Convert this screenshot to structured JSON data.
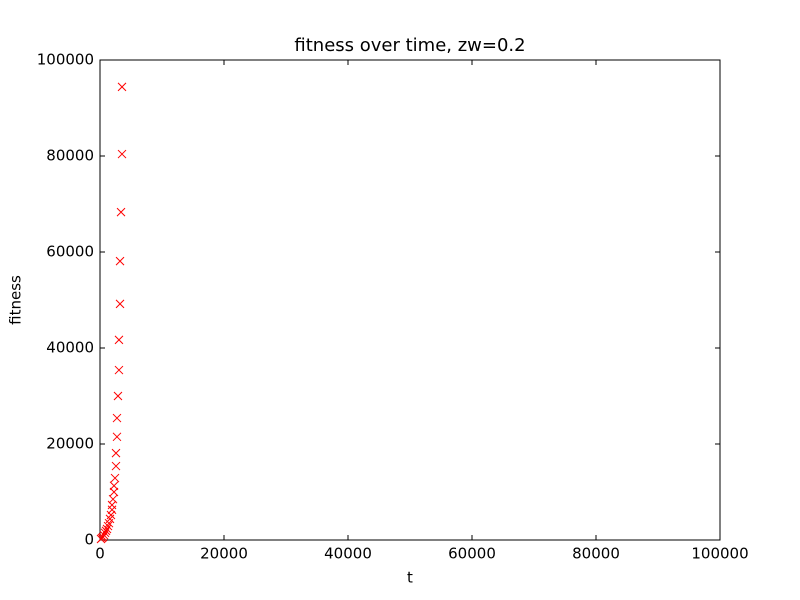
{
  "chart_data": {
    "type": "scatter",
    "title": "fitness over time, zw=0.2",
    "x_label": "t",
    "y_label": "fitness",
    "series": [
      {
        "name": "fitness",
        "color": "#ff0000",
        "marker": "x",
        "x": [
          3550,
          3550,
          3390,
          3230,
          3230,
          3060,
          3060,
          2900,
          2740,
          2740,
          2580,
          2580,
          2420,
          2260,
          2260,
          2100,
          1940,
          1940,
          1770,
          1610,
          1450,
          1290,
          1130,
          970,
          810,
          650,
          480,
          320,
          160
        ],
        "values": [
          94400,
          80400,
          68300,
          58100,
          49200,
          41700,
          35400,
          30000,
          25400,
          21500,
          18100,
          15400,
          12900,
          11300,
          10000,
          8500,
          7300,
          6300,
          5200,
          4400,
          3500,
          2900,
          2300,
          1900,
          1500,
          1000,
          600,
          400,
          200
        ]
      }
    ],
    "xlim": [
      0,
      100000
    ],
    "ylim": [
      0,
      100000
    ],
    "xticks": [
      0,
      20000,
      40000,
      60000,
      80000,
      100000
    ],
    "yticks": [
      0,
      20000,
      40000,
      60000,
      80000,
      100000
    ],
    "grid": false
  }
}
